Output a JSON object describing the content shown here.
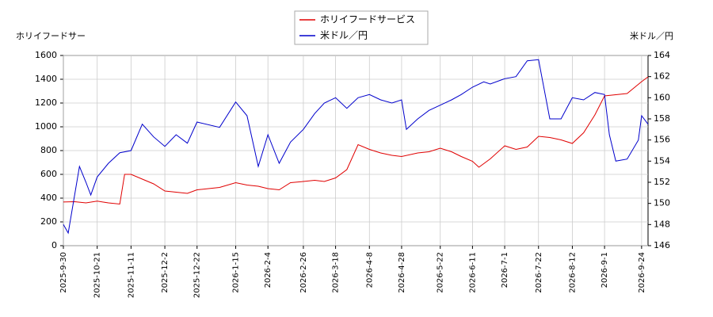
{
  "chart_data": {
    "type": "line",
    "ylabel": "ホリイフードサー",
    "y2label": "米ドル／円",
    "xlim": [
      "2025-9-30",
      "2026-9-28"
    ],
    "xticks": [
      "2025-9-30",
      "2025-10-21",
      "2025-11-11",
      "2025-12-2",
      "2025-12-22",
      "2026-1-15",
      "2026-2-4",
      "2026-2-26",
      "2026-3-18",
      "2026-4-8",
      "2026-4-28",
      "2026-5-22",
      "2026-6-11",
      "2026-7-1",
      "2026-7-22",
      "2026-8-12",
      "2026-9-1",
      "2026-9-24"
    ],
    "ylim": [
      0,
      1600
    ],
    "yticks": [
      0,
      200,
      400,
      600,
      800,
      1000,
      1200,
      1400,
      1600
    ],
    "y2lim": [
      146,
      164
    ],
    "y2ticks": [
      146,
      148,
      150,
      152,
      154,
      156,
      158,
      160,
      162,
      164
    ],
    "grid": true,
    "legend": "top center",
    "series": [
      {
        "name": "ホリイフードサービス",
        "color": "#e00000",
        "x": [
          "2025-9-30",
          "2025-10-7",
          "2025-10-14",
          "2025-10-21",
          "2025-10-28",
          "2025-11-4",
          "2025-11-7",
          "2025-11-11",
          "2025-11-18",
          "2025-11-25",
          "2025-12-2",
          "2025-12-9",
          "2025-12-16",
          "2025-12-22",
          "2026-1-5",
          "2026-1-15",
          "2026-1-22",
          "2026-1-29",
          "2026-2-4",
          "2026-2-11",
          "2026-2-18",
          "2026-2-26",
          "2026-3-5",
          "2026-3-11",
          "2026-3-18",
          "2026-3-25",
          "2026-4-1",
          "2026-4-8",
          "2026-4-15",
          "2026-4-22",
          "2026-4-28",
          "2026-5-8",
          "2026-5-15",
          "2026-5-22",
          "2026-5-29",
          "2026-6-4",
          "2026-6-11",
          "2026-6-15",
          "2026-6-22",
          "2026-7-1",
          "2026-7-8",
          "2026-7-15",
          "2026-7-22",
          "2026-7-29",
          "2026-8-5",
          "2026-8-12",
          "2026-8-19",
          "2026-8-26",
          "2026-9-1",
          "2026-9-8",
          "2026-9-15",
          "2026-9-24",
          "2026-9-28"
        ],
        "values": [
          367,
          370,
          360,
          375,
          360,
          350,
          600,
          600,
          560,
          520,
          460,
          450,
          440,
          470,
          490,
          530,
          510,
          500,
          480,
          470,
          530,
          540,
          550,
          540,
          570,
          640,
          850,
          810,
          780,
          760,
          750,
          780,
          790,
          820,
          790,
          750,
          710,
          660,
          730,
          840,
          810,
          830,
          920,
          910,
          890,
          860,
          950,
          1100,
          1260,
          1270,
          1280,
          1380,
          1420
        ]
      },
      {
        "name": "米ドル／円",
        "color": "#0000cc",
        "axis": "y2",
        "x": [
          "2025-9-30",
          "2025-10-3",
          "2025-10-10",
          "2025-10-14",
          "2025-10-17",
          "2025-10-21",
          "2025-10-28",
          "2025-11-4",
          "2025-11-11",
          "2025-11-18",
          "2025-11-25",
          "2025-12-2",
          "2025-12-9",
          "2025-12-16",
          "2025-12-22",
          "2026-1-5",
          "2026-1-15",
          "2026-1-22",
          "2026-1-29",
          "2026-2-4",
          "2026-2-11",
          "2026-2-18",
          "2026-2-26",
          "2026-3-5",
          "2026-3-11",
          "2026-3-18",
          "2026-3-25",
          "2026-4-1",
          "2026-4-8",
          "2026-4-15",
          "2026-4-22",
          "2026-4-28",
          "2026-5-1",
          "2026-5-8",
          "2026-5-15",
          "2026-5-22",
          "2026-5-29",
          "2026-6-4",
          "2026-6-11",
          "2026-6-18",
          "2026-6-22",
          "2026-7-1",
          "2026-7-8",
          "2026-7-15",
          "2026-7-22",
          "2026-7-29",
          "2026-8-5",
          "2026-8-12",
          "2026-8-19",
          "2026-8-26",
          "2026-9-1",
          "2026-9-4",
          "2026-9-8",
          "2026-9-15",
          "2026-9-22",
          "2026-9-24",
          "2026-9-28"
        ],
        "values": [
          148,
          147.2,
          153.5,
          152,
          150.8,
          152.5,
          153.8,
          154.8,
          155,
          157.5,
          156.3,
          155.4,
          156.5,
          155.7,
          157.7,
          157.2,
          159.6,
          158.3,
          153.5,
          156.5,
          153.8,
          155.8,
          157,
          158.5,
          159.5,
          160,
          159,
          160,
          160.3,
          159.8,
          159.5,
          159.8,
          157,
          158,
          158.8,
          159.3,
          159.8,
          160.3,
          161,
          161.5,
          161.3,
          161.8,
          162,
          163.5,
          163.6,
          158,
          158,
          160,
          159.8,
          160.5,
          160.3,
          156.5,
          154,
          154.2,
          156,
          158.3,
          157.5
        ]
      }
    ]
  }
}
